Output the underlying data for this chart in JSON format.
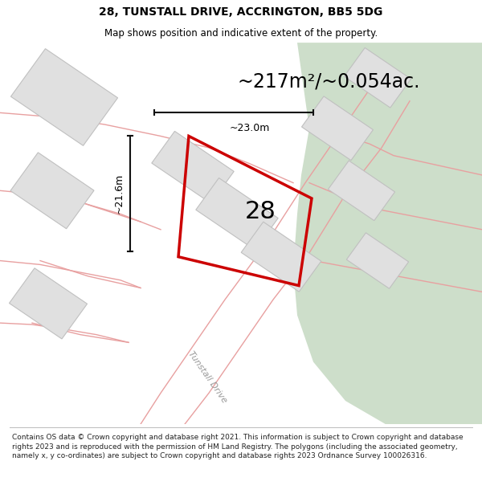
{
  "title": "28, TUNSTALL DRIVE, ACCRINGTON, BB5 5DG",
  "subtitle": "Map shows position and indicative extent of the property.",
  "footer": "Contains OS data © Crown copyright and database right 2021. This information is subject to Crown copyright and database rights 2023 and is reproduced with the permission of HM Land Registry. The polygons (including the associated geometry, namely x, y co-ordinates) are subject to Crown copyright and database rights 2023 Ordnance Survey 100026316.",
  "area_text": "~217m²/~0.054ac.",
  "label_number": "28",
  "dim_vertical": "~21.6m",
  "dim_horizontal": "~23.0m",
  "road_label": "Tunstall Drive",
  "bg_map_color": "#eeeeee",
  "green_area_color": "#cddeca",
  "building_fill": "#e0e0e0",
  "building_stroke": "#c8c8c8",
  "road_line_color": "#e8a0a0",
  "highlight_color": "#cc0000",
  "dim_line_color": "#111111",
  "title_fontsize": 10,
  "subtitle_fontsize": 8.5,
  "area_fontsize": 17,
  "number_fontsize": 22,
  "footer_fontsize": 6.5
}
